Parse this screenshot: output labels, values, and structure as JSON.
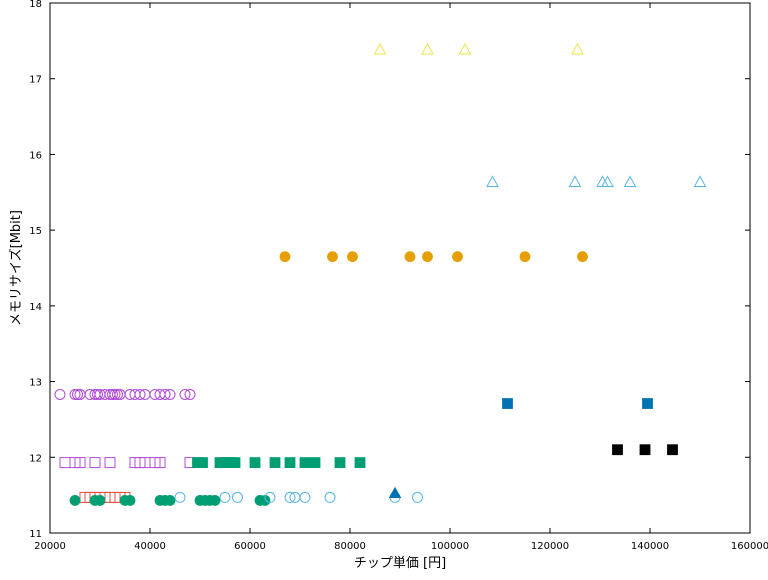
{
  "chart_data": {
    "type": "scatter",
    "xlabel": "チップ単価 [円]",
    "ylabel": "メモリサイズ[Mbit]",
    "xlim": [
      20000,
      160000
    ],
    "ylim": [
      11,
      18
    ],
    "xticks": [
      "20000",
      "40000",
      "60000",
      "80000",
      "100000",
      "120000",
      "140000",
      "160000"
    ],
    "yticks": [
      "11",
      "12",
      "13",
      "14",
      "15",
      "16",
      "17",
      "18"
    ],
    "grid": false,
    "series": [
      {
        "marker": "circle-open",
        "color": "#b24cd8",
        "x": [
          22000,
          25000,
          25500,
          26000,
          28000,
          29000,
          29500,
          30000,
          31000,
          32000,
          32500,
          33000,
          33500,
          34000,
          36000,
          37000,
          38000,
          39000,
          41000,
          42000,
          43000,
          44000,
          47000,
          48000
        ],
        "y": [
          12.83,
          12.83,
          12.83,
          12.83,
          12.83,
          12.83,
          12.83,
          12.83,
          12.83,
          12.83,
          12.83,
          12.83,
          12.83,
          12.83,
          12.83,
          12.83,
          12.83,
          12.83,
          12.83,
          12.83,
          12.83,
          12.83,
          12.83,
          12.83
        ]
      },
      {
        "marker": "square-open",
        "color": "#b24cd8",
        "x": [
          23000,
          25000,
          26000,
          29000,
          32000,
          37000,
          38000,
          39000,
          41000,
          42000,
          48000
        ],
        "y": [
          11.93,
          11.93,
          11.93,
          11.93,
          11.93,
          11.93,
          11.93,
          11.93,
          11.93,
          11.93,
          11.93
        ]
      },
      {
        "marker": "square-open",
        "color": "#e05040",
        "x": [
          27000,
          28000,
          29000,
          30000,
          31000,
          32000,
          33000,
          34000,
          35000
        ],
        "y": [
          11.47,
          11.47,
          11.47,
          11.47,
          11.47,
          11.47,
          11.47,
          11.47,
          11.47
        ]
      },
      {
        "marker": "circle-filled",
        "color": "#009e73",
        "x": [
          25000,
          29000,
          30000,
          35000,
          36000,
          42000,
          43000,
          44000,
          50000,
          51000,
          52000,
          53000,
          62000,
          63000
        ],
        "y": [
          11.43,
          11.43,
          11.43,
          11.43,
          11.43,
          11.43,
          11.43,
          11.43,
          11.43,
          11.43,
          11.43,
          11.43,
          11.43,
          11.43
        ]
      },
      {
        "marker": "circle-open",
        "color": "#56b4e9",
        "x": [
          46000,
          55000,
          57500,
          64000,
          68000,
          69000,
          71000,
          76000,
          89000,
          93500
        ],
        "y": [
          11.47,
          11.47,
          11.47,
          11.47,
          11.47,
          11.47,
          11.47,
          11.47,
          11.47,
          11.47
        ]
      },
      {
        "marker": "square-filled",
        "color": "#009e73",
        "x": [
          49500,
          50500,
          54000,
          55000,
          56000,
          57000,
          61000,
          65000,
          68000,
          71000,
          73000,
          78000,
          82000
        ],
        "y": [
          11.93,
          11.93,
          11.93,
          11.93,
          11.93,
          11.93,
          11.93,
          11.93,
          11.93,
          11.93,
          11.93,
          11.93,
          11.93
        ]
      },
      {
        "marker": "triangle-filled",
        "color": "#0072b2",
        "x": [
          89000
        ],
        "y": [
          11.52
        ]
      },
      {
        "marker": "circle-filled",
        "color": "#e69f00",
        "x": [
          67000,
          76500,
          80500,
          92000,
          95500,
          101500,
          115000,
          126500
        ],
        "y": [
          14.65,
          14.65,
          14.65,
          14.65,
          14.65,
          14.65,
          14.65,
          14.65
        ]
      },
      {
        "marker": "square-filled",
        "color": "#0072b2",
        "x": [
          111500,
          139500
        ],
        "y": [
          12.71,
          12.71
        ]
      },
      {
        "marker": "square-filled",
        "color": "#000000",
        "x": [
          133500,
          139000,
          144500
        ],
        "y": [
          12.1,
          12.1,
          12.1
        ]
      },
      {
        "marker": "triangle-open",
        "color": "#56b4e9",
        "x": [
          108500,
          125000,
          130500,
          131500,
          136000,
          150000
        ],
        "y": [
          15.63,
          15.63,
          15.63,
          15.63,
          15.63,
          15.63
        ]
      },
      {
        "marker": "triangle-open",
        "color": "#f0e442",
        "x": [
          86000,
          95500,
          103000,
          125500
        ],
        "y": [
          17.38,
          17.38,
          17.38,
          17.38
        ]
      }
    ]
  }
}
